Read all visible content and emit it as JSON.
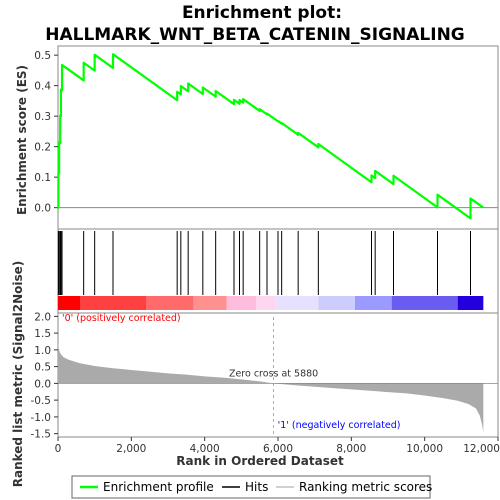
{
  "chart_data": {
    "type": "line",
    "title": "Enrichment plot:\nHALLMARK_WNT_BETA_CATENIN_SIGNALING",
    "xlabel": "Rank in Ordered Dataset",
    "xlim": [
      0,
      12000
    ],
    "x_ticks": [
      0,
      2000,
      4000,
      6000,
      8000,
      10000,
      12000
    ],
    "x_tick_labels": [
      "0",
      "2,000",
      "4,000",
      "6,000",
      "8,000",
      "10,000",
      "12,000"
    ],
    "n_genes": 11600,
    "es_panel": {
      "ylabel": "Enrichment score (ES)",
      "ylim": [
        -0.07,
        0.53
      ],
      "y_ticks": [
        0.0,
        0.1,
        0.2,
        0.3,
        0.4,
        0.5
      ],
      "y_tick_labels": [
        "0.0",
        "0.1",
        "0.2",
        "0.3",
        "0.4",
        "0.5"
      ],
      "hits": [
        10,
        30,
        60,
        80,
        110,
        700,
        1000,
        1500,
        3250,
        3350,
        3550,
        3950,
        4300,
        4800,
        4950,
        5050,
        5500,
        5700,
        6000,
        6100,
        6550,
        7100,
        8550,
        8650,
        9150,
        10350,
        11250
      ],
      "es_peak": {
        "rank": 1000,
        "es": 0.5
      },
      "es_min": {
        "rank": 11240,
        "es": -0.045
      }
    },
    "metric_panel": {
      "ylabel": "Ranked list metric (Signal2Noise)",
      "ylim": [
        -1.6,
        2.1
      ],
      "y_ticks": [
        2.0,
        1.5,
        1.0,
        0.5,
        0.0,
        -0.5,
        -1.0,
        -1.5
      ],
      "y_tick_labels": [
        "2.0",
        "1.5",
        "1.0",
        "0.5",
        "0.0",
        "-0.5",
        "-1.0",
        "-1.5"
      ],
      "profile": [
        [
          0,
          1.25
        ],
        [
          20,
          1.05
        ],
        [
          60,
          0.9
        ],
        [
          150,
          0.78
        ],
        [
          300,
          0.7
        ],
        [
          600,
          0.6
        ],
        [
          1000,
          0.52
        ],
        [
          1500,
          0.45
        ],
        [
          2000,
          0.4
        ],
        [
          2500,
          0.35
        ],
        [
          3000,
          0.3
        ],
        [
          3500,
          0.26
        ],
        [
          4000,
          0.21
        ],
        [
          4500,
          0.17
        ],
        [
          5000,
          0.12
        ],
        [
          5500,
          0.06
        ],
        [
          5880,
          0.0
        ],
        [
          6500,
          -0.06
        ],
        [
          7000,
          -0.1
        ],
        [
          7500,
          -0.14
        ],
        [
          8000,
          -0.18
        ],
        [
          8500,
          -0.22
        ],
        [
          9000,
          -0.26
        ],
        [
          9500,
          -0.3
        ],
        [
          10000,
          -0.36
        ],
        [
          10500,
          -0.44
        ],
        [
          10900,
          -0.52
        ],
        [
          11200,
          -0.62
        ],
        [
          11400,
          -0.75
        ],
        [
          11500,
          -0.95
        ],
        [
          11560,
          -1.2
        ],
        [
          11600,
          -1.45
        ]
      ],
      "zero_cross": 5880,
      "zero_cross_label": "Zero cross at 5880",
      "pos_label": "'0' (positively correlated)",
      "neg_label": "'1' (negatively correlated)"
    },
    "legend": {
      "placement": "bottom",
      "entries": [
        {
          "label": "Enrichment profile",
          "color": "#00ff00",
          "kind": "line"
        },
        {
          "label": "Hits",
          "color": "#000000",
          "kind": "line"
        },
        {
          "label": "Ranking metric scores",
          "color": "#c0c0c0",
          "kind": "line"
        }
      ]
    },
    "colors": {
      "es_line": "#00ff00",
      "hits": "#000000",
      "metric_fill": "#aaaaaa",
      "pos_text": "#ff0000",
      "neg_text": "#0000ff",
      "zero_line": "#888888"
    },
    "heat_bar": [
      {
        "from": 0,
        "to": 600,
        "color": "#ff0000"
      },
      {
        "from": 600,
        "to": 2400,
        "color": "#ff4040"
      },
      {
        "from": 2400,
        "to": 3700,
        "color": "#ff6a6a"
      },
      {
        "from": 3700,
        "to": 4600,
        "color": "#ff9090"
      },
      {
        "from": 4600,
        "to": 5400,
        "color": "#ffbcdc"
      },
      {
        "from": 5400,
        "to": 5950,
        "color": "#ffd6f0"
      },
      {
        "from": 5950,
        "to": 7100,
        "color": "#e8e0ff"
      },
      {
        "from": 7100,
        "to": 8100,
        "color": "#ccccff"
      },
      {
        "from": 8100,
        "to": 9100,
        "color": "#9a9aff"
      },
      {
        "from": 9100,
        "to": 10900,
        "color": "#6a5cf0"
      },
      {
        "from": 10900,
        "to": 11600,
        "color": "#2200dd"
      }
    ]
  }
}
